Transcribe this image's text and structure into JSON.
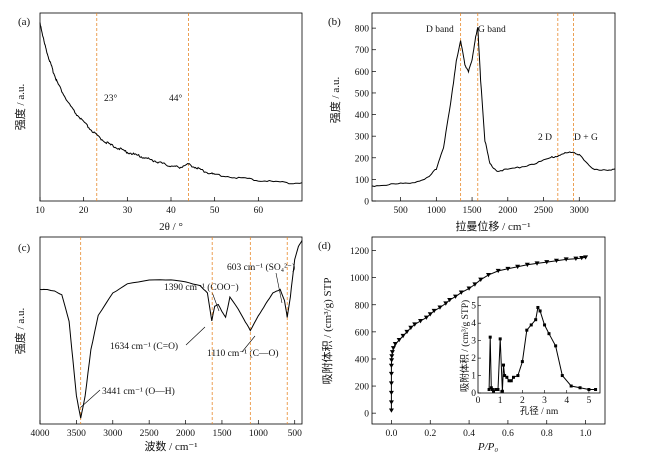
{
  "figure": {
    "panels": [
      {
        "id": "a",
        "label": "(a)",
        "ylabel": "强度 / a.u.",
        "xlabel": "2θ / °"
      },
      {
        "id": "b",
        "label": "(b)",
        "ylabel": "强度 / a.u.",
        "xlabel": "拉曼位移 / cm⁻¹"
      },
      {
        "id": "c",
        "label": "(c)",
        "ylabel": "强度 / a.u.",
        "xlabel": "波数 / cm⁻¹"
      },
      {
        "id": "d",
        "label": "(d)",
        "ylabel": "吸附体积 / (cm³/g) STP",
        "xlabel": "P/P₀"
      }
    ]
  },
  "chart_data": [
    {
      "id": "a",
      "type": "line",
      "xlabel": "2θ / °",
      "ylabel": "强度 / a.u.",
      "xlim": [
        10,
        70
      ],
      "ylim": [
        0,
        100
      ],
      "xticks": [
        10,
        20,
        30,
        40,
        50,
        60
      ],
      "reference_lines": [
        {
          "x": 23,
          "label": "23°"
        },
        {
          "x": 44,
          "label": "44°"
        }
      ],
      "x": [
        10,
        11,
        12,
        13,
        14,
        16,
        18,
        20,
        22,
        24,
        26,
        28,
        30,
        32,
        34,
        36,
        38,
        40,
        42,
        44,
        46,
        48,
        50,
        55,
        60,
        65,
        70
      ],
      "y": [
        95,
        84,
        76,
        69,
        63,
        54,
        47,
        42,
        37,
        33,
        30,
        28,
        26,
        24.5,
        23,
        21.5,
        20,
        18.5,
        18,
        19.5,
        17.5,
        15.5,
        14,
        12.5,
        11,
        10,
        9.5
      ]
    },
    {
      "id": "b",
      "type": "line",
      "xlabel": "拉曼位移 / cm⁻¹",
      "ylabel": "强度 / a.u.",
      "xlim": [
        100,
        3500
      ],
      "ylim": [
        0,
        870
      ],
      "xticks": [
        500,
        1000,
        1500,
        2000,
        2500,
        3000
      ],
      "yticks": [
        0,
        100,
        200,
        300,
        400,
        500,
        600,
        700,
        800
      ],
      "reference_lines": [
        {
          "x": 1340
        },
        {
          "x": 1580
        },
        {
          "x": 2700
        },
        {
          "x": 2920
        }
      ],
      "annotations": [
        "D band",
        "G band",
        "2 D",
        "D + G"
      ],
      "x": [
        100,
        300,
        500,
        700,
        900,
        1000,
        1100,
        1200,
        1280,
        1340,
        1400,
        1450,
        1500,
        1550,
        1580,
        1620,
        1680,
        1750,
        1850,
        2000,
        2200,
        2400,
        2600,
        2700,
        2800,
        2900,
        3000,
        3100,
        3200,
        3300,
        3400,
        3500
      ],
      "y": [
        70,
        75,
        80,
        88,
        110,
        150,
        250,
        450,
        650,
        740,
        630,
        600,
        650,
        760,
        800,
        560,
        280,
        170,
        140,
        145,
        160,
        175,
        200,
        210,
        220,
        228,
        215,
        175,
        150,
        140,
        145,
        148
      ]
    },
    {
      "id": "c",
      "type": "line",
      "xlabel": "波数 / cm⁻¹",
      "ylabel": "强度 / a.u.",
      "xlim": [
        4000,
        400
      ],
      "ylim": [
        0,
        100
      ],
      "xticks": [
        4000,
        3500,
        3000,
        2500,
        2000,
        1500,
        1000,
        500
      ],
      "reference_lines": [
        {
          "x": 3441
        },
        {
          "x": 1634
        },
        {
          "x": 1110
        },
        {
          "x": 603
        }
      ],
      "annotations": [
        "603 cm⁻¹ (SO₄²⁻)",
        "1390 cm⁻¹ (COO⁻)",
        "1634 cm⁻¹ (C=O)",
        "1110 cm⁻¹ (C—O)",
        "3441 cm⁻¹ (O—H)"
      ],
      "x": [
        4000,
        3900,
        3800,
        3700,
        3600,
        3550,
        3500,
        3441,
        3380,
        3300,
        3200,
        3000,
        2800,
        2500,
        2200,
        2000,
        1800,
        1700,
        1640,
        1600,
        1550,
        1500,
        1450,
        1390,
        1300,
        1200,
        1110,
        1000,
        900,
        800,
        700,
        640,
        603,
        560,
        500,
        450,
        400
      ],
      "y": [
        72,
        72,
        71,
        69,
        55,
        35,
        15,
        3,
        15,
        40,
        58,
        70,
        75,
        77,
        77,
        76,
        74,
        70,
        55,
        63,
        64,
        60,
        57,
        68,
        63,
        56,
        50,
        58,
        64,
        70,
        72,
        66,
        57,
        68,
        88,
        95,
        98
      ]
    },
    {
      "id": "d",
      "type": "scatter",
      "xlabel": "P/P₀",
      "ylabel": "吸附体积 / (cm³/g) STP",
      "xlim": [
        -0.1,
        1.1
      ],
      "ylim": [
        -80,
        1300
      ],
      "xticks": [
        0.0,
        0.2,
        0.4,
        0.6,
        0.8,
        1.0
      ],
      "yticks": [
        0,
        200,
        400,
        600,
        800,
        1000,
        1200
      ],
      "x": [
        0,
        0,
        0,
        0,
        0,
        0,
        0.001,
        0.002,
        0.005,
        0.01,
        0.02,
        0.04,
        0.06,
        0.08,
        0.1,
        0.12,
        0.15,
        0.18,
        0.2,
        0.22,
        0.25,
        0.28,
        0.3,
        0.33,
        0.36,
        0.4,
        0.43,
        0.46,
        0.5,
        0.55,
        0.6,
        0.65,
        0.7,
        0.75,
        0.8,
        0.85,
        0.9,
        0.95,
        0.98,
        1.0
      ],
      "y": [
        20,
        80,
        150,
        220,
        290,
        350,
        390,
        420,
        450,
        480,
        510,
        540,
        570,
        600,
        630,
        655,
        680,
        705,
        730,
        755,
        780,
        810,
        835,
        860,
        890,
        920,
        950,
        985,
        1020,
        1050,
        1065,
        1080,
        1095,
        1105,
        1115,
        1125,
        1135,
        1140,
        1145,
        1150
      ],
      "inset": {
        "type": "line",
        "xlabel": "孔径 / nm",
        "ylabel": "吸附体积 / (cm³/g STP)",
        "xlim": [
          0,
          5.5
        ],
        "ylim": [
          0,
          5.5
        ],
        "xticks": [
          0,
          1,
          2,
          3,
          4,
          5
        ],
        "yticks": [
          0,
          1,
          2,
          3,
          4,
          5
        ],
        "x": [
          0.5,
          0.55,
          0.6,
          0.65,
          0.7,
          0.8,
          0.9,
          1.0,
          1.1,
          1.15,
          1.2,
          1.3,
          1.4,
          1.5,
          1.6,
          1.8,
          2.0,
          2.2,
          2.4,
          2.6,
          2.7,
          2.8,
          3.0,
          3.2,
          3.5,
          3.8,
          4.2,
          4.6,
          5.0,
          5.3
        ],
        "y": [
          0.2,
          3.2,
          0.3,
          0.2,
          0.1,
          0.2,
          0.2,
          3.1,
          0.1,
          1.6,
          1.0,
          0.9,
          0.7,
          0.7,
          0.9,
          1.0,
          1.8,
          3.6,
          3.9,
          4.2,
          4.9,
          4.7,
          3.9,
          3.4,
          2.7,
          1.0,
          0.4,
          0.3,
          0.2,
          0.2
        ]
      }
    }
  ]
}
